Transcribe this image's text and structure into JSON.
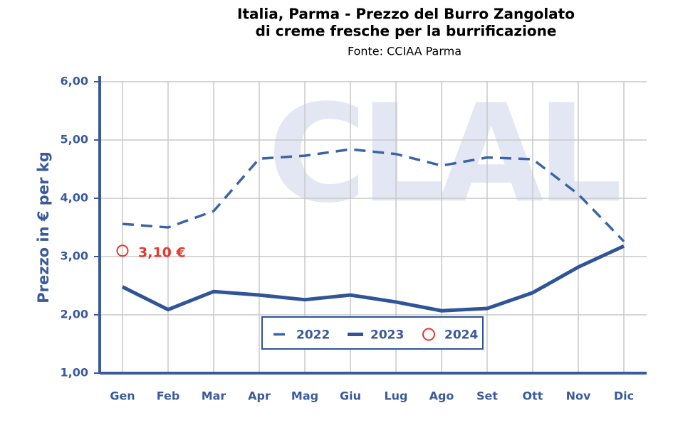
{
  "chart_data": {
    "type": "line",
    "title": "Italia, Parma - Prezzo del Burro Zangolato",
    "title_line2": "di creme fresche per la burrificazione",
    "subtitle": "Fonte: CCIAA Parma",
    "watermark": "CLAL",
    "y_label": "Prezzo in € per kg",
    "categories": [
      "Gen",
      "Feb",
      "Mar",
      "Apr",
      "Mag",
      "Giu",
      "Lug",
      "Ago",
      "Set",
      "Ott",
      "Nov",
      "Dic"
    ],
    "series": [
      {
        "name": "2022",
        "color": "#3a64a8",
        "style": "dashed",
        "values": [
          3.56,
          3.5,
          3.78,
          4.68,
          4.73,
          4.84,
          4.76,
          4.56,
          4.7,
          4.67,
          4.07,
          3.26
        ]
      },
      {
        "name": "2023",
        "color": "#2f5597",
        "style": "solid",
        "values": [
          2.48,
          2.09,
          2.4,
          2.34,
          2.26,
          2.34,
          2.22,
          2.07,
          2.11,
          2.38,
          2.82,
          3.18
        ]
      },
      {
        "name": "2024",
        "color": "#e8372b",
        "style": "marker",
        "values": [
          3.1,
          null,
          null,
          null,
          null,
          null,
          null,
          null,
          null,
          null,
          null,
          null
        ],
        "value_labels": [
          "3,10 €",
          null,
          null,
          null,
          null,
          null,
          null,
          null,
          null,
          null,
          null,
          null
        ]
      }
    ],
    "ylim": [
      1,
      6
    ],
    "yticks": [
      {
        "value": 1,
        "label": "1,00"
      },
      {
        "value": 2,
        "label": "2,00"
      },
      {
        "value": 3,
        "label": "3,00"
      },
      {
        "value": 4,
        "label": "4,00"
      },
      {
        "value": 5,
        "label": "5,00"
      },
      {
        "value": 6,
        "label": "6,00"
      }
    ],
    "grid": true,
    "legend": "bottom"
  }
}
